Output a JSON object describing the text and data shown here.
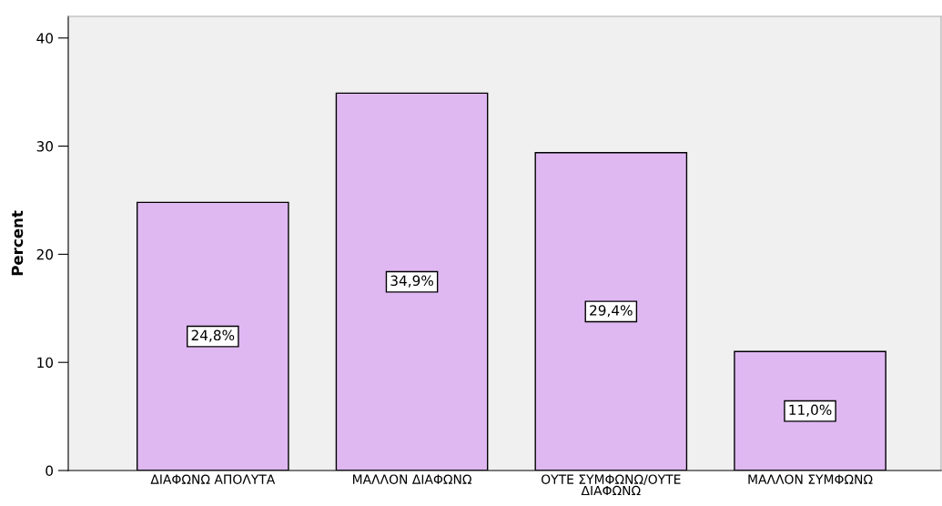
{
  "chart_data": {
    "type": "bar",
    "ylabel": "Percent",
    "categories": [
      "ΔΙΑΦΩΝΩ ΑΠΟΛΥΤΑ",
      "ΜΑΛΛΟΝ ΔΙΑΦΩΝΩ",
      "ΟΥΤΕ ΣΥΜΦΩΝΩ/ΟΥΤΕ\nΔΙΑΦΩΝΩ",
      "ΜΑΛΛΟΝ ΣΥΜΦΩΝΩ"
    ],
    "values": [
      24.8,
      34.9,
      29.4,
      11.0
    ],
    "value_labels": [
      "24,8%",
      "34,9%",
      "29,4%",
      "11,0%"
    ],
    "color": "#dfb8f2",
    "ylim": [
      0,
      42
    ],
    "yticks": [
      0,
      10,
      20,
      30,
      40
    ],
    "grid": false,
    "legend": false
  }
}
